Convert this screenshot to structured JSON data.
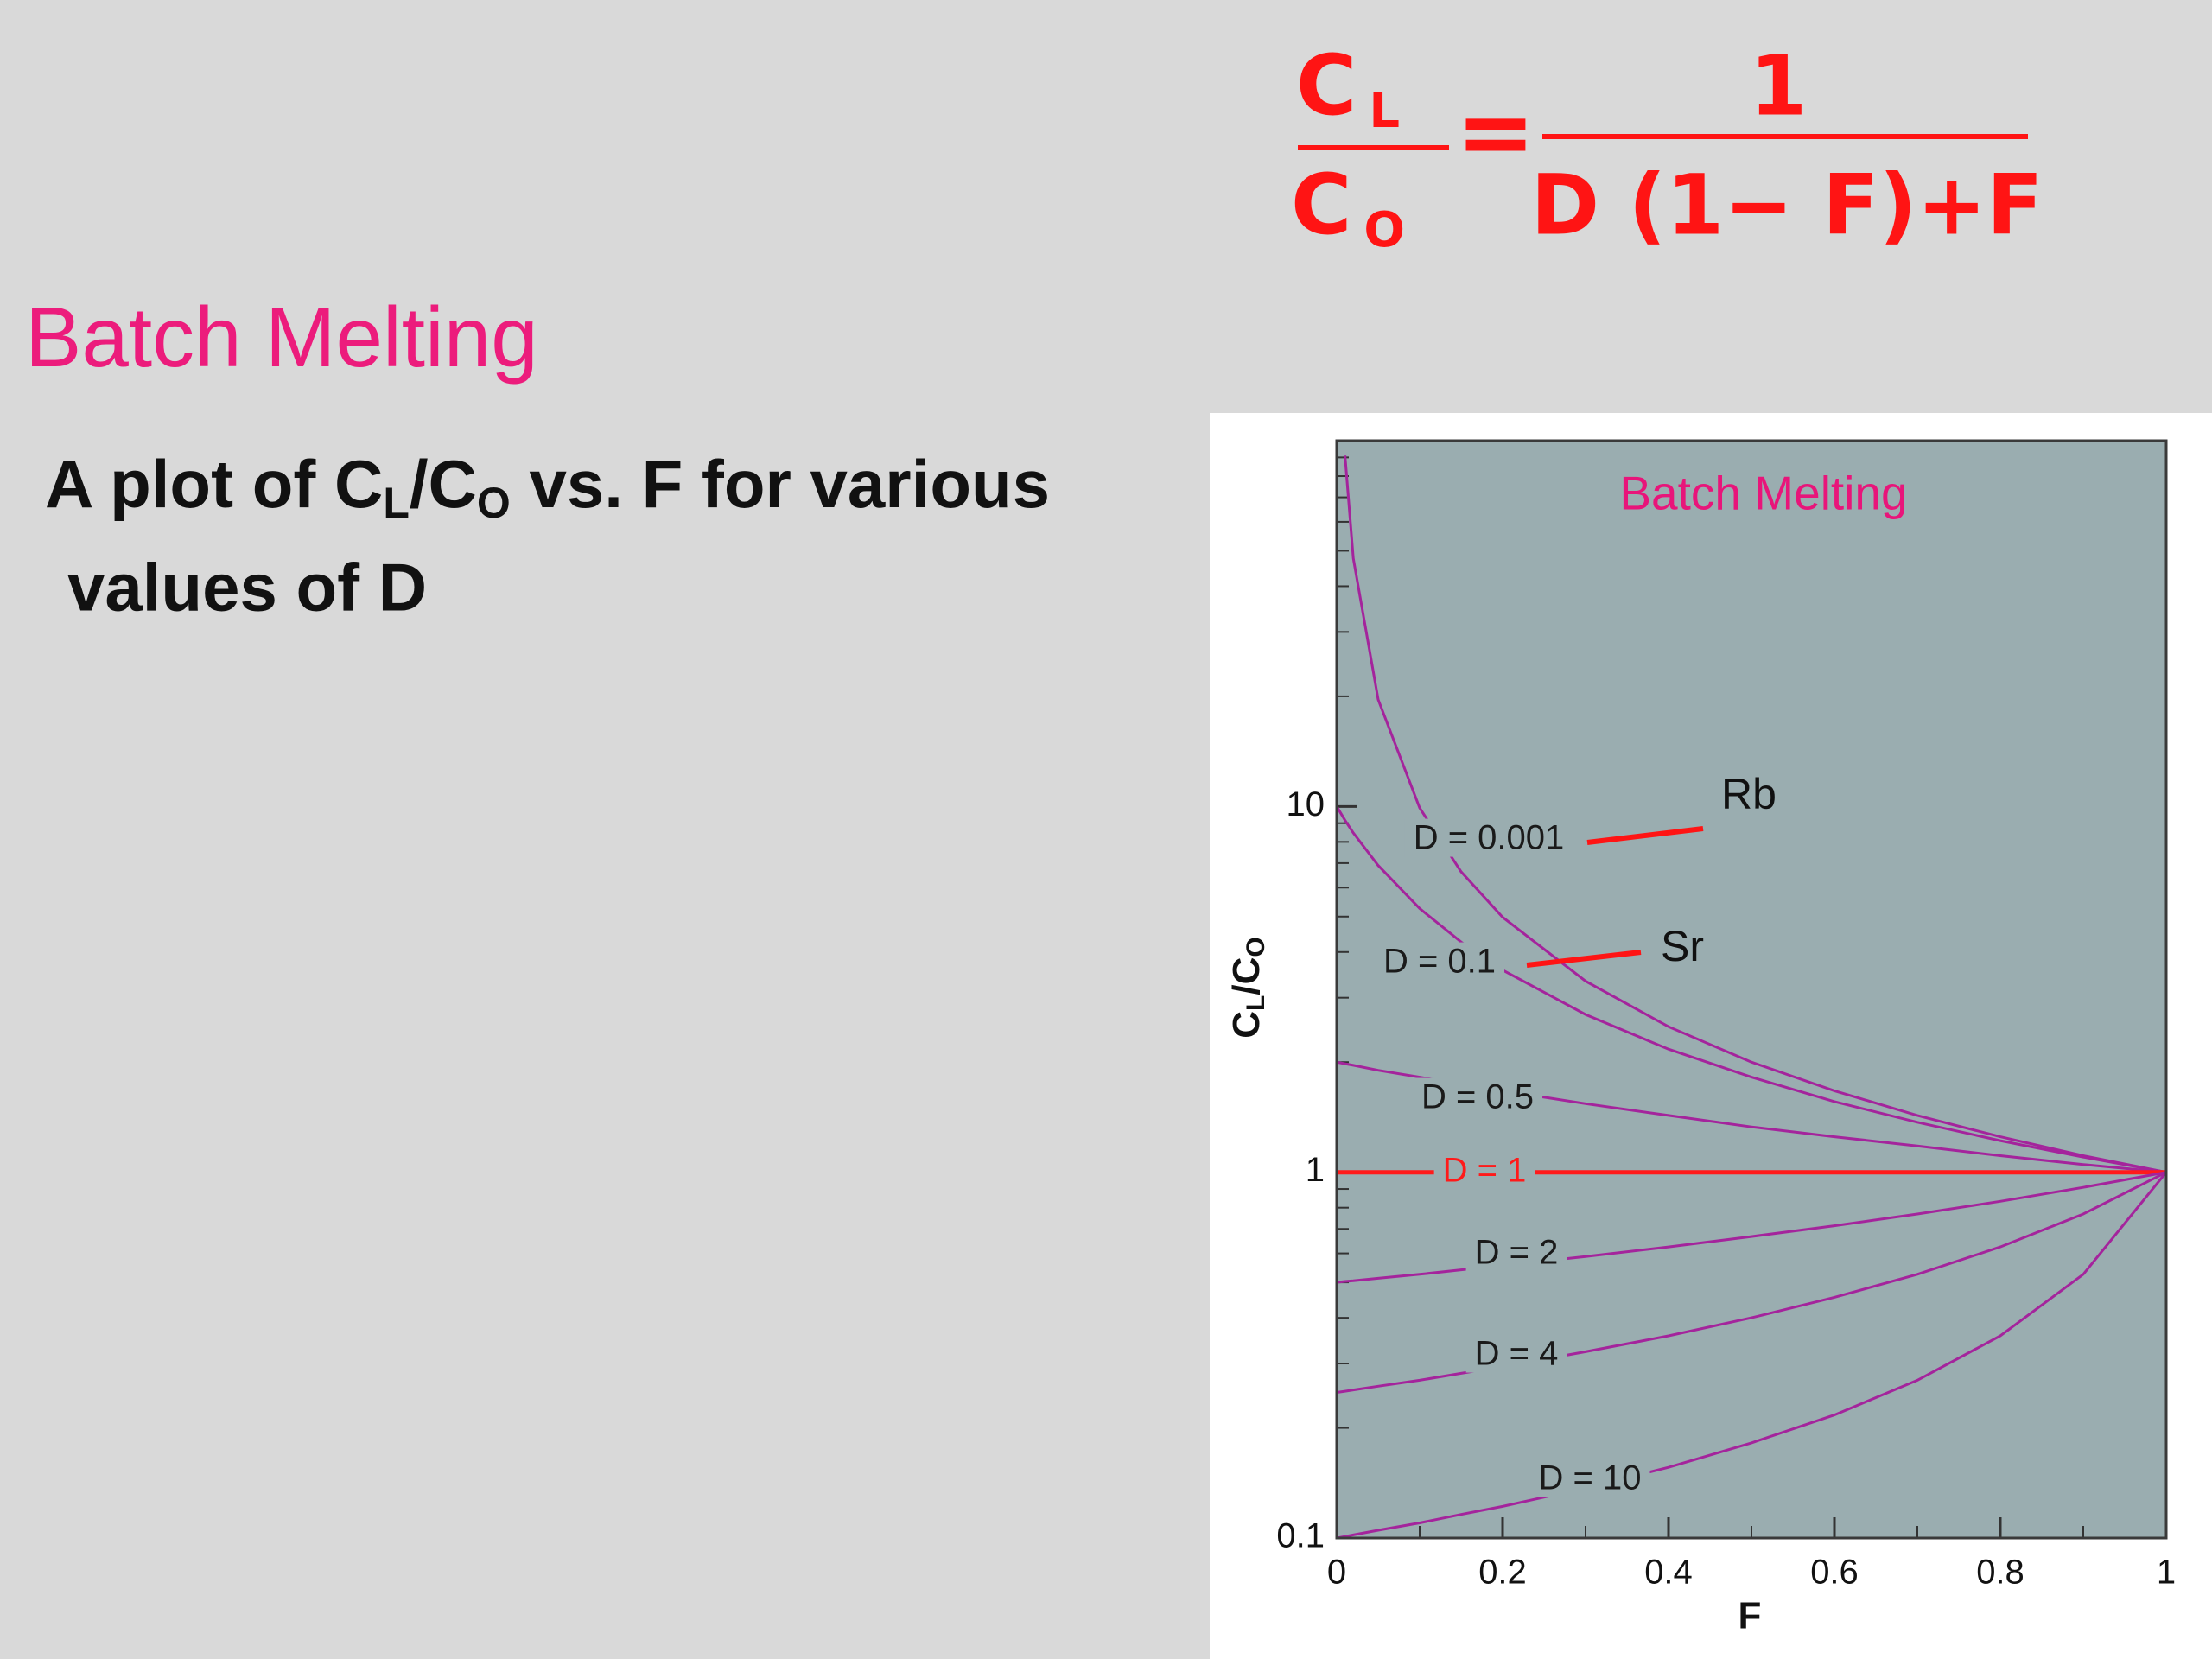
{
  "slide": {
    "title": "Batch Melting",
    "body": {
      "text1": "A plot of C",
      "sub1": "L",
      "text2": "/C",
      "sub2": "O",
      "text3": " vs. F for various",
      "line2": "values of D"
    },
    "formula": {
      "lhs_num": "C",
      "lhs_num_sub": "L",
      "lhs_den": "C",
      "lhs_den_sub": "O",
      "equals": "=",
      "rhs_num": "1",
      "rhs_den": "D (1− F)+F"
    }
  },
  "chart_data": {
    "type": "line",
    "title": "Batch Melting",
    "xlabel": "F",
    "ylabel": {
      "main1": "C",
      "sub1": "L",
      "main2": "/C",
      "sub2": "O"
    },
    "x": [
      0,
      0.01,
      0.02,
      0.05,
      0.1,
      0.15,
      0.2,
      0.3,
      0.4,
      0.5,
      0.6,
      0.7,
      0.8,
      0.9,
      1
    ],
    "series": [
      {
        "name": "D = 0.001",
        "color": "#a4249c",
        "label_color": "#1a1a1a",
        "values": [
          null,
          91.0,
          47.7,
          19.6,
          9.91,
          6.63,
          4.98,
          3.33,
          2.5,
          2.0,
          1.67,
          1.43,
          1.25,
          1.11,
          1
        ]
      },
      {
        "name": "D = 0.1",
        "color": "#a4249c",
        "label_color": "#1a1a1a",
        "values": [
          10,
          9.17,
          8.47,
          6.9,
          5.26,
          4.26,
          3.57,
          2.7,
          2.17,
          1.82,
          1.56,
          1.37,
          1.22,
          1.1,
          1
        ]
      },
      {
        "name": "D = 0.5",
        "color": "#a4249c",
        "label_color": "#1a1a1a",
        "values": [
          2,
          1.98,
          1.96,
          1.9,
          1.82,
          1.74,
          1.67,
          1.54,
          1.43,
          1.33,
          1.25,
          1.18,
          1.11,
          1.05,
          1
        ]
      },
      {
        "name": "D = 1",
        "color": "#ff1a1a",
        "label_color": "#ff1a1a",
        "values": [
          1,
          1,
          1,
          1,
          1,
          1,
          1,
          1,
          1,
          1,
          1,
          1,
          1,
          1,
          1
        ]
      },
      {
        "name": "D = 2",
        "color": "#a4249c",
        "label_color": "#1a1a1a",
        "values": [
          0.5,
          0.503,
          0.505,
          0.513,
          0.526,
          0.541,
          0.556,
          0.588,
          0.625,
          0.667,
          0.714,
          0.769,
          0.833,
          0.909,
          1
        ]
      },
      {
        "name": "D = 4",
        "color": "#a4249c",
        "label_color": "#1a1a1a",
        "values": [
          0.25,
          0.252,
          0.254,
          0.26,
          0.27,
          0.282,
          0.294,
          0.323,
          0.357,
          0.4,
          0.455,
          0.526,
          0.625,
          0.769,
          1
        ]
      },
      {
        "name": "D = 10",
        "color": "#a4249c",
        "label_color": "#1a1a1a",
        "values": [
          0.1,
          0.101,
          0.102,
          0.105,
          0.11,
          0.116,
          0.122,
          0.137,
          0.156,
          0.182,
          0.217,
          0.27,
          0.357,
          0.526,
          1
        ]
      }
    ],
    "annotations": [
      "Rb",
      "Sr"
    ],
    "annotation_color": "#ff1414",
    "xlim": [
      0,
      1
    ],
    "ylim": [
      0.1,
      100
    ],
    "ylog": true,
    "xticks": [
      0,
      0.2,
      0.4,
      0.6,
      0.8,
      1
    ],
    "xminorticks": [
      0.1,
      0.3,
      0.5,
      0.7,
      0.9
    ],
    "yticks": [
      0.1,
      1,
      10
    ],
    "yminorticks": [
      0.2,
      0.3,
      0.4,
      0.5,
      0.6,
      0.7,
      0.8,
      0.9,
      2,
      3,
      4,
      5,
      6,
      7,
      8,
      9,
      20,
      30,
      40,
      50,
      60,
      70,
      80,
      90
    ],
    "title_color": "#e8157a",
    "plot_background": "#9aadb0"
  }
}
